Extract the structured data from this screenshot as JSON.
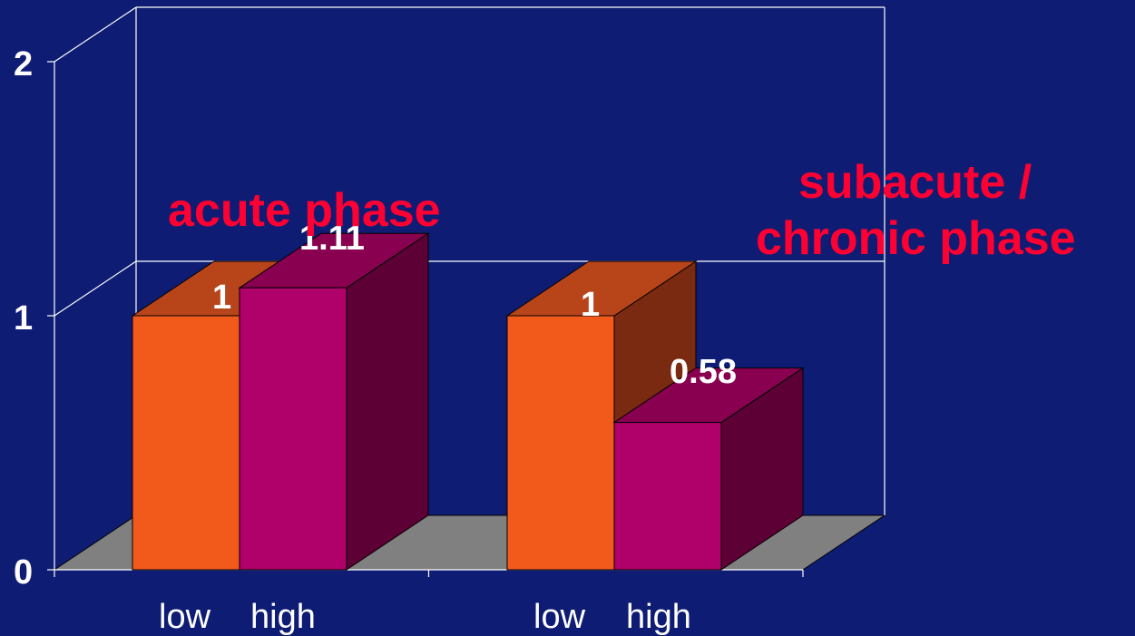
{
  "chart_data": {
    "type": "bar",
    "style": "3d-clustered-column",
    "groups": [
      {
        "title_lines": [
          "acute phase"
        ],
        "categories": [
          "low",
          "high"
        ],
        "values": [
          1,
          1.11
        ],
        "data_labels": [
          "1",
          "1.11"
        ]
      },
      {
        "title_lines": [
          "subacute /",
          "chronic phase"
        ],
        "categories": [
          "low",
          "high"
        ],
        "values": [
          1,
          0.58
        ],
        "data_labels": [
          "1",
          "0.58"
        ]
      }
    ],
    "y_ticks": [
      "0",
      "1",
      "2"
    ],
    "ylim": [
      0,
      2
    ],
    "grid": true,
    "colors": {
      "background": "#0e1d73",
      "floor": "#808080",
      "low_front": "#f25a1c",
      "low_top": "#b8441a",
      "low_side": "#7a2a10",
      "high_front": "#b0006a",
      "high_top": "#8a0050",
      "high_side": "#5c0035",
      "title": "#ff0033",
      "text": "#ffffff"
    }
  }
}
